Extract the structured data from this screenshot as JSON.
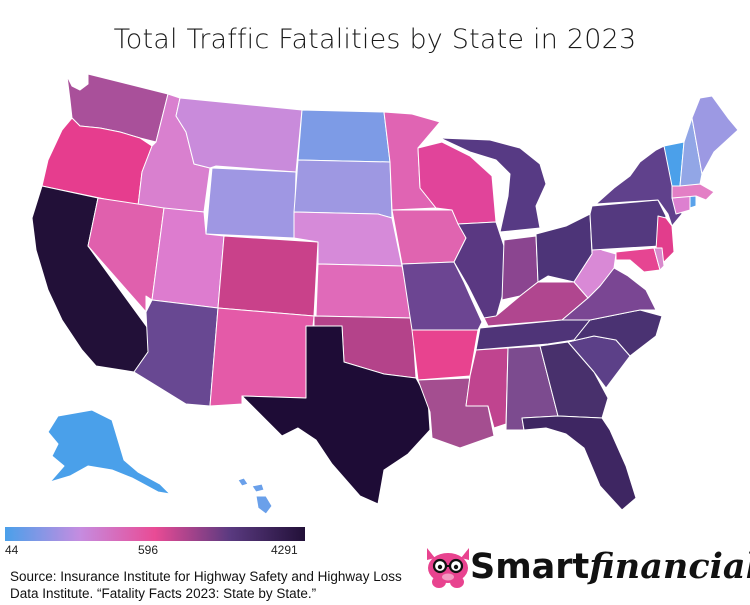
{
  "title": "Total Traffic Fatalities by State in 2023",
  "legend": {
    "min": "44",
    "mid": "596",
    "max": "4291",
    "colors": [
      "#4aa0ea",
      "#c58ce0",
      "#e94b95",
      "#5a3a80",
      "#221038"
    ]
  },
  "source": "Source: Insurance Institute for Highway Safety and Highway Loss Data Institute. “Fatality Facts 2023: State by State.”",
  "logo": {
    "part1": "Smart",
    "part2": "financial",
    "icon": "pig-with-glasses-icon"
  },
  "states": [
    {
      "code": "WA",
      "color": "#a9509a"
    },
    {
      "code": "OR",
      "color": "#e63d8e"
    },
    {
      "code": "CA",
      "color": "#221038"
    },
    {
      "code": "ID",
      "color": "#d980cf"
    },
    {
      "code": "NV",
      "color": "#e060ad"
    },
    {
      "code": "MT",
      "color": "#c98bdb"
    },
    {
      "code": "WY",
      "color": "#9f97e3"
    },
    {
      "code": "UT",
      "color": "#dd7ccf"
    },
    {
      "code": "AZ",
      "color": "#684892"
    },
    {
      "code": "CO",
      "color": "#c9418a"
    },
    {
      "code": "NM",
      "color": "#e45aa8"
    },
    {
      "code": "ND",
      "color": "#7d9be6"
    },
    {
      "code": "SD",
      "color": "#9e98e2"
    },
    {
      "code": "NE",
      "color": "#d68ad9"
    },
    {
      "code": "KS",
      "color": "#e06ab9"
    },
    {
      "code": "OK",
      "color": "#b4438a"
    },
    {
      "code": "TX",
      "color": "#1e0c36"
    },
    {
      "code": "MN",
      "color": "#e064b3"
    },
    {
      "code": "IA",
      "color": "#e064b0"
    },
    {
      "code": "MO",
      "color": "#6c4592"
    },
    {
      "code": "AR",
      "color": "#e8438f"
    },
    {
      "code": "LA",
      "color": "#a44e90"
    },
    {
      "code": "WI",
      "color": "#e1449a"
    },
    {
      "code": "IL",
      "color": "#5a3882"
    },
    {
      "code": "MI",
      "color": "#573a84"
    },
    {
      "code": "IN",
      "color": "#8b4590"
    },
    {
      "code": "OH",
      "color": "#4d3478"
    },
    {
      "code": "KY",
      "color": "#b0468f"
    },
    {
      "code": "TN",
      "color": "#4f3478"
    },
    {
      "code": "MS",
      "color": "#c0448f"
    },
    {
      "code": "AL",
      "color": "#7c4b8f"
    },
    {
      "code": "GA",
      "color": "#48306c"
    },
    {
      "code": "FL",
      "color": "#3e2662"
    },
    {
      "code": "SC",
      "color": "#5c4088"
    },
    {
      "code": "NC",
      "color": "#4a3272"
    },
    {
      "code": "VA",
      "color": "#7a4693"
    },
    {
      "code": "WV",
      "color": "#d989d6"
    },
    {
      "code": "PA",
      "color": "#54397f"
    },
    {
      "code": "NY",
      "color": "#60418c"
    },
    {
      "code": "NJ",
      "color": "#e23d8c"
    },
    {
      "code": "MD",
      "color": "#e64592"
    },
    {
      "code": "DE",
      "color": "#d98acc"
    },
    {
      "code": "CT",
      "color": "#dd80d0"
    },
    {
      "code": "RI",
      "color": "#5aa2ea"
    },
    {
      "code": "MA",
      "color": "#e37fc5"
    },
    {
      "code": "VT",
      "color": "#4ba0ea"
    },
    {
      "code": "NH",
      "color": "#92a6e6"
    },
    {
      "code": "ME",
      "color": "#9c99e3"
    },
    {
      "code": "AK",
      "color": "#4aa0ea"
    },
    {
      "code": "HI",
      "color": "#6aa0ea"
    }
  ]
}
